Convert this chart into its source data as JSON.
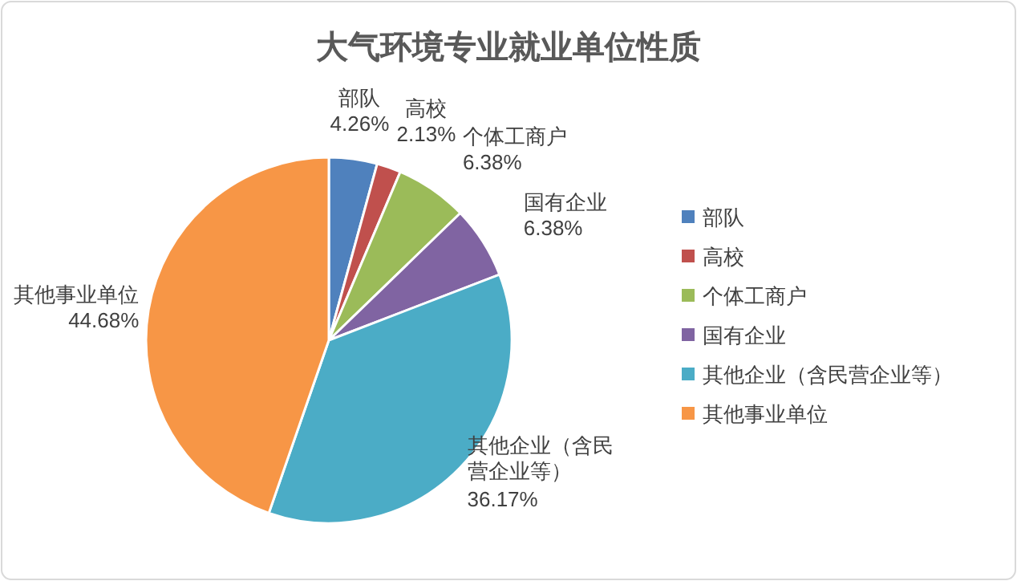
{
  "chart_data": {
    "type": "pie",
    "title": "大气环境专业就业单位性质",
    "categories": [
      "部队",
      "高校",
      "个体工商户",
      "国有企业",
      "其他企业（含民营企业等）",
      "其他事业单位"
    ],
    "values": [
      4.26,
      2.13,
      6.38,
      6.38,
      36.17,
      44.68
    ],
    "colors": [
      "#4f81bd",
      "#c0504d",
      "#9bbb59",
      "#8064a2",
      "#4bacc6",
      "#f79646"
    ],
    "value_labels": [
      "4.26%",
      "2.13%",
      "6.38%",
      "6.38%",
      "36.17%",
      "44.68%"
    ],
    "legend": "right"
  }
}
